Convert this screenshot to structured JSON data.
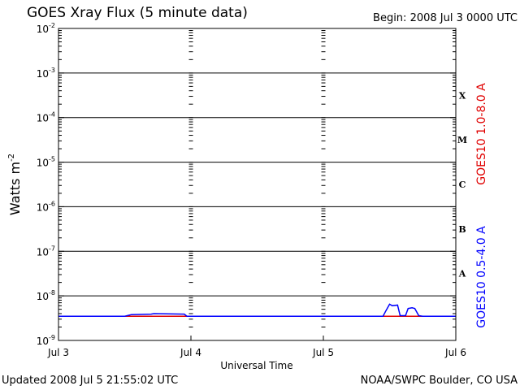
{
  "header": {
    "title": "GOES Xray Flux (5 minute data)",
    "begin": "Begin:  2008 Jul 3 0000 UTC"
  },
  "footer": {
    "updated": "Updated 2008 Jul  5 21:55:02 UTC",
    "credit": "NOAA/SWPC Boulder, CO USA"
  },
  "chart_data": {
    "type": "line",
    "title": "GOES Xray Flux (5 minute data)",
    "xlabel": "Universal Time",
    "ylabel_base": "Watts m",
    "ylabel_exponent": "-2",
    "y_scale": "log",
    "ylim": [
      1e-09,
      0.01
    ],
    "x_ticks": [
      "Jul 3",
      "Jul 4",
      "Jul 5",
      "Jul 6"
    ],
    "y_ticks": [
      {
        "base": "10",
        "exp": "-9"
      },
      {
        "base": "10",
        "exp": "-8"
      },
      {
        "base": "10",
        "exp": "-7"
      },
      {
        "base": "10",
        "exp": "-6"
      },
      {
        "base": "10",
        "exp": "-5"
      },
      {
        "base": "10",
        "exp": "-4"
      },
      {
        "base": "10",
        "exp": "-3"
      },
      {
        "base": "10",
        "exp": "-2"
      }
    ],
    "flare_classes": [
      {
        "label": "A",
        "value": 1e-08
      },
      {
        "label": "B",
        "value": 1e-07
      },
      {
        "label": "C",
        "value": 1e-06
      },
      {
        "label": "M",
        "value": 1e-05
      },
      {
        "label": "X",
        "value": 0.0001
      }
    ],
    "grid": "horizontal lines at each decade above 1e-8",
    "series": [
      {
        "name": "GOES10 1.0-8.0 A",
        "color": "#e00000",
        "x_days": [
          0.0,
          3.0
        ],
        "values": [
          3.5e-09,
          3.5e-09
        ]
      },
      {
        "name": "GOES10 0.5-4.0 A",
        "color": "#0000ff",
        "x_days": [
          0.0,
          0.5,
          0.55,
          0.7,
          0.72,
          0.95,
          0.97,
          1.0,
          2.0,
          2.45,
          2.47,
          2.5,
          2.52,
          2.56,
          2.58,
          2.62,
          2.64,
          2.67,
          2.69,
          2.72,
          2.75,
          3.0
        ],
        "values": [
          3.5e-09,
          3.5e-09,
          3.8e-09,
          3.9e-09,
          4e-09,
          3.9e-09,
          3.5e-09,
          3.5e-09,
          3.5e-09,
          3.5e-09,
          4.5e-09,
          6.5e-09,
          6e-09,
          6.2e-09,
          3.6e-09,
          3.6e-09,
          5.2e-09,
          5.4e-09,
          5.2e-09,
          3.6e-09,
          3.5e-09,
          3.5e-09
        ]
      }
    ]
  }
}
